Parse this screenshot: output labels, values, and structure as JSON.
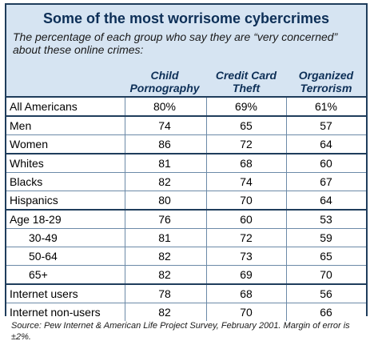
{
  "title": "Some of the most worrisome cybercrimes",
  "subtitle": "The percentage of each group who say they are “very concerned” about these online crimes:",
  "columns": [
    "Child Pornography",
    "Credit Card Theft",
    "Organized Terrorism"
  ],
  "source": "Source:  Pew Internet & American Life Project Survey, February 2001.  Margin of error is ±2%.",
  "colors": {
    "border": "#1f3d5c",
    "panel": "#d6e4f2",
    "title": "#0d2f57"
  },
  "chart_data": {
    "type": "table",
    "title": "Some of the most worrisome cybercrimes",
    "columns": [
      "Child Pornography",
      "Credit Card Theft",
      "Organized Terrorism"
    ],
    "rows": [
      {
        "label": "All Americans",
        "values": [
          "80%",
          "69%",
          "61%"
        ],
        "group_start": true,
        "indent": false
      },
      {
        "label": "Men",
        "values": [
          "74",
          "65",
          "57"
        ],
        "group_start": true,
        "indent": false
      },
      {
        "label": "Women",
        "values": [
          "86",
          "72",
          "64"
        ],
        "group_start": false,
        "indent": false
      },
      {
        "label": "Whites",
        "values": [
          "81",
          "68",
          "60"
        ],
        "group_start": true,
        "indent": false
      },
      {
        "label": "Blacks",
        "values": [
          "82",
          "74",
          "67"
        ],
        "group_start": false,
        "indent": false
      },
      {
        "label": "Hispanics",
        "values": [
          "80",
          "70",
          "64"
        ],
        "group_start": false,
        "indent": false
      },
      {
        "label": "Age 18-29",
        "values": [
          "76",
          "60",
          "53"
        ],
        "group_start": true,
        "indent": false
      },
      {
        "label": "30-49",
        "values": [
          "81",
          "72",
          "59"
        ],
        "group_start": false,
        "indent": true
      },
      {
        "label": "50-64",
        "values": [
          "82",
          "73",
          "65"
        ],
        "group_start": false,
        "indent": true
      },
      {
        "label": "65+",
        "values": [
          "82",
          "69",
          "70"
        ],
        "group_start": false,
        "indent": true
      },
      {
        "label": "Internet users",
        "values": [
          "78",
          "68",
          "56"
        ],
        "group_start": true,
        "indent": false
      },
      {
        "label": "Internet non-users",
        "values": [
          "82",
          "70",
          "66"
        ],
        "group_start": false,
        "indent": false
      }
    ]
  }
}
